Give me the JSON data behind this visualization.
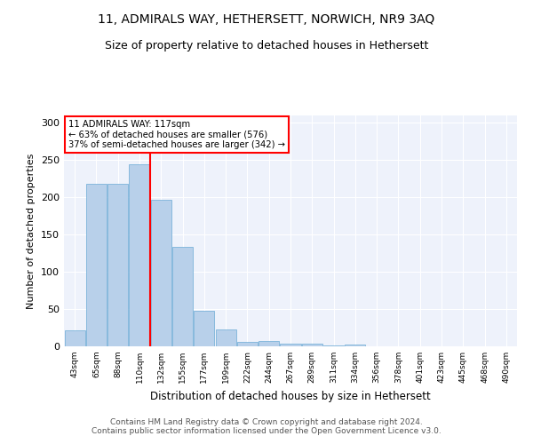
{
  "title": "11, ADMIRALS WAY, HETHERSETT, NORWICH, NR9 3AQ",
  "subtitle": "Size of property relative to detached houses in Hethersett",
  "xlabel": "Distribution of detached houses by size in Hethersett",
  "ylabel": "Number of detached properties",
  "categories": [
    "43sqm",
    "65sqm",
    "88sqm",
    "110sqm",
    "132sqm",
    "155sqm",
    "177sqm",
    "199sqm",
    "222sqm",
    "244sqm",
    "267sqm",
    "289sqm",
    "311sqm",
    "334sqm",
    "356sqm",
    "378sqm",
    "401sqm",
    "423sqm",
    "445sqm",
    "468sqm",
    "490sqm"
  ],
  "bar_heights": [
    22,
    218,
    218,
    245,
    197,
    133,
    48,
    23,
    6,
    7,
    4,
    3,
    1,
    2,
    0,
    0,
    0,
    0,
    0,
    0,
    0
  ],
  "bar_color": "#b8d0ea",
  "bar_edge_color": "#6aaad4",
  "vline_x_idx": 3.0,
  "vline_color": "red",
  "annotation_text": "11 ADMIRALS WAY: 117sqm\n← 63% of detached houses are smaller (576)\n37% of semi-detached houses are larger (342) →",
  "annotation_box_color": "white",
  "annotation_box_edge": "red",
  "ylim": [
    0,
    310
  ],
  "yticks": [
    0,
    50,
    100,
    150,
    200,
    250,
    300
  ],
  "background_color": "#eef2fb",
  "footer": "Contains HM Land Registry data © Crown copyright and database right 2024.\nContains public sector information licensed under the Open Government Licence v3.0.",
  "title_fontsize": 10,
  "subtitle_fontsize": 9,
  "footer_fontsize": 6.5
}
